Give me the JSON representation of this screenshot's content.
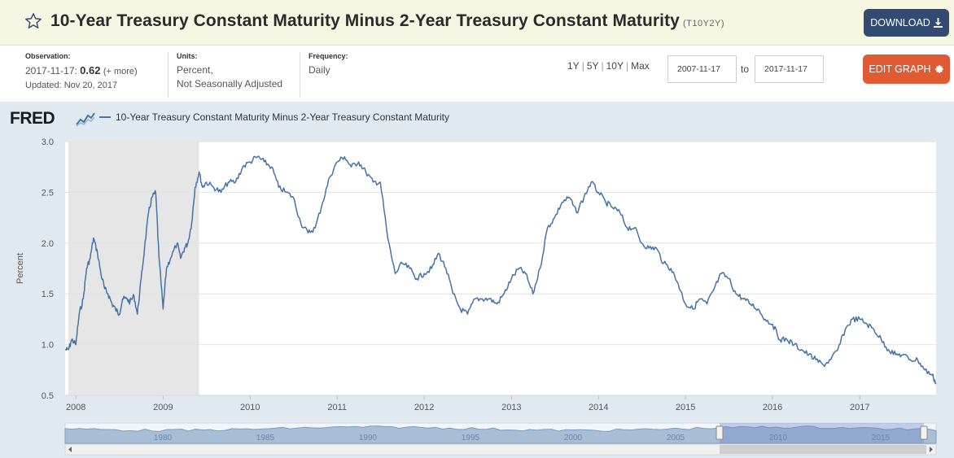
{
  "header": {
    "title": "10-Year Treasury Constant Maturity Minus 2-Year Treasury Constant Maturity",
    "series_id": "(T10Y2Y)",
    "download_label": "DOWNLOAD",
    "download_icon": "download-icon",
    "favorite_icon": "star-icon"
  },
  "meta": {
    "observation_label": "Observation:",
    "observation_date": "2017-11-17:",
    "observation_value": "0.62",
    "more_link": "(+ more)",
    "updated": "Updated: Nov 20, 2017",
    "units_label": "Units:",
    "units_line1": "Percent,",
    "units_line2": "Not Seasonally Adjusted",
    "frequency_label": "Frequency:",
    "frequency_value": "Daily"
  },
  "range": {
    "options": [
      "1Y",
      "5Y",
      "10Y",
      "Max"
    ],
    "from": "2007-11-17",
    "to_label": "to",
    "to": "2017-11-17"
  },
  "edit_graph_label": "EDIT GRAPH",
  "logo_text": "FRED",
  "colors": {
    "series": "#4572a7",
    "recession": "#e6e6e6",
    "header_bg": "#f7f6e2",
    "download_bg": "#334b73",
    "edit_bg": "#e05a34",
    "graph_bg": "#e1e9f0"
  },
  "chart_data": {
    "type": "line",
    "title": "",
    "xlabel": "",
    "ylabel": "Percent",
    "ylim": [
      0.5,
      3.0
    ],
    "xlim": [
      "2007-11-17",
      "2017-11-17"
    ],
    "y_ticks": [
      "0.5",
      "1.0",
      "1.5",
      "2.0",
      "2.5",
      "3.0"
    ],
    "x_ticks": [
      "2008",
      "2009",
      "2010",
      "2011",
      "2012",
      "2013",
      "2014",
      "2015",
      "2016",
      "2017"
    ],
    "grid": true,
    "legend": "top-left",
    "recession": {
      "start": "2007-12-01",
      "end": "2009-06-01"
    },
    "series": [
      {
        "name": "10-Year Treasury Constant Maturity Minus 2-Year Treasury Constant Maturity",
        "points": [
          [
            "2007-11-17",
            0.95
          ],
          [
            "2007-12-01",
            0.95
          ],
          [
            "2007-12-15",
            1.05
          ],
          [
            "2008-01-01",
            1.0
          ],
          [
            "2008-01-15",
            1.3
          ],
          [
            "2008-02-01",
            1.45
          ],
          [
            "2008-02-15",
            1.75
          ],
          [
            "2008-03-01",
            1.85
          ],
          [
            "2008-03-15",
            2.05
          ],
          [
            "2008-04-01",
            1.9
          ],
          [
            "2008-04-15",
            1.7
          ],
          [
            "2008-05-01",
            1.55
          ],
          [
            "2008-05-15",
            1.5
          ],
          [
            "2008-06-01",
            1.4
          ],
          [
            "2008-06-15",
            1.35
          ],
          [
            "2008-07-01",
            1.3
          ],
          [
            "2008-07-15",
            1.45
          ],
          [
            "2008-08-01",
            1.45
          ],
          [
            "2008-08-15",
            1.42
          ],
          [
            "2008-09-01",
            1.48
          ],
          [
            "2008-09-15",
            1.3
          ],
          [
            "2008-10-01",
            1.65
          ],
          [
            "2008-10-15",
            1.95
          ],
          [
            "2008-11-01",
            2.3
          ],
          [
            "2008-11-15",
            2.45
          ],
          [
            "2008-12-01",
            2.5
          ],
          [
            "2008-12-15",
            1.85
          ],
          [
            "2009-01-01",
            1.35
          ],
          [
            "2009-01-15",
            1.75
          ],
          [
            "2009-02-01",
            1.85
          ],
          [
            "2009-03-01",
            2.0
          ],
          [
            "2009-03-15",
            1.85
          ],
          [
            "2009-04-01",
            1.95
          ],
          [
            "2009-04-15",
            2.0
          ],
          [
            "2009-05-01",
            2.2
          ],
          [
            "2009-05-15",
            2.55
          ],
          [
            "2009-06-01",
            2.7
          ],
          [
            "2009-06-15",
            2.55
          ],
          [
            "2009-07-01",
            2.6
          ],
          [
            "2009-08-01",
            2.55
          ],
          [
            "2009-09-01",
            2.5
          ],
          [
            "2009-10-01",
            2.6
          ],
          [
            "2009-11-01",
            2.6
          ],
          [
            "2009-12-01",
            2.75
          ],
          [
            "2010-01-01",
            2.8
          ],
          [
            "2010-02-01",
            2.85
          ],
          [
            "2010-03-01",
            2.8
          ],
          [
            "2010-04-01",
            2.75
          ],
          [
            "2010-05-01",
            2.55
          ],
          [
            "2010-06-01",
            2.5
          ],
          [
            "2010-07-01",
            2.45
          ],
          [
            "2010-08-01",
            2.2
          ],
          [
            "2010-09-01",
            2.1
          ],
          [
            "2010-10-01",
            2.15
          ],
          [
            "2010-11-01",
            2.4
          ],
          [
            "2010-12-01",
            2.65
          ],
          [
            "2011-01-01",
            2.8
          ],
          [
            "2011-02-01",
            2.85
          ],
          [
            "2011-03-01",
            2.75
          ],
          [
            "2011-04-01",
            2.8
          ],
          [
            "2011-05-01",
            2.7
          ],
          [
            "2011-06-01",
            2.6
          ],
          [
            "2011-07-01",
            2.6
          ],
          [
            "2011-08-01",
            2.05
          ],
          [
            "2011-09-01",
            1.7
          ],
          [
            "2011-10-01",
            1.8
          ],
          [
            "2011-11-01",
            1.75
          ],
          [
            "2011-12-01",
            1.65
          ],
          [
            "2012-01-01",
            1.7
          ],
          [
            "2012-02-01",
            1.75
          ],
          [
            "2012-03-01",
            1.9
          ],
          [
            "2012-04-01",
            1.75
          ],
          [
            "2012-05-01",
            1.5
          ],
          [
            "2012-06-01",
            1.35
          ],
          [
            "2012-07-01",
            1.3
          ],
          [
            "2012-08-01",
            1.45
          ],
          [
            "2012-09-01",
            1.45
          ],
          [
            "2012-10-01",
            1.45
          ],
          [
            "2012-11-01",
            1.4
          ],
          [
            "2012-12-01",
            1.5
          ],
          [
            "2013-01-01",
            1.65
          ],
          [
            "2013-02-01",
            1.75
          ],
          [
            "2013-03-01",
            1.7
          ],
          [
            "2013-04-01",
            1.5
          ],
          [
            "2013-05-01",
            1.75
          ],
          [
            "2013-06-01",
            2.15
          ],
          [
            "2013-07-01",
            2.25
          ],
          [
            "2013-08-01",
            2.4
          ],
          [
            "2013-09-01",
            2.45
          ],
          [
            "2013-10-01",
            2.3
          ],
          [
            "2013-11-01",
            2.45
          ],
          [
            "2013-12-01",
            2.6
          ],
          [
            "2014-01-01",
            2.5
          ],
          [
            "2014-02-01",
            2.4
          ],
          [
            "2014-03-01",
            2.35
          ],
          [
            "2014-04-01",
            2.3
          ],
          [
            "2014-05-01",
            2.15
          ],
          [
            "2014-06-01",
            2.15
          ],
          [
            "2014-07-01",
            2.0
          ],
          [
            "2014-08-01",
            1.95
          ],
          [
            "2014-09-01",
            1.95
          ],
          [
            "2014-10-01",
            1.8
          ],
          [
            "2014-11-01",
            1.75
          ],
          [
            "2014-12-01",
            1.6
          ],
          [
            "2015-01-01",
            1.4
          ],
          [
            "2015-02-01",
            1.35
          ],
          [
            "2015-03-01",
            1.45
          ],
          [
            "2015-04-01",
            1.4
          ],
          [
            "2015-05-01",
            1.55
          ],
          [
            "2015-06-01",
            1.7
          ],
          [
            "2015-07-01",
            1.65
          ],
          [
            "2015-08-01",
            1.5
          ],
          [
            "2015-09-01",
            1.45
          ],
          [
            "2015-10-01",
            1.4
          ],
          [
            "2015-11-01",
            1.35
          ],
          [
            "2015-12-01",
            1.25
          ],
          [
            "2016-01-01",
            1.2
          ],
          [
            "2016-02-01",
            1.05
          ],
          [
            "2016-03-01",
            1.05
          ],
          [
            "2016-04-01",
            1.0
          ],
          [
            "2016-05-01",
            0.95
          ],
          [
            "2016-06-01",
            0.9
          ],
          [
            "2016-07-01",
            0.85
          ],
          [
            "2016-08-01",
            0.8
          ],
          [
            "2016-09-01",
            0.85
          ],
          [
            "2016-10-01",
            0.95
          ],
          [
            "2016-11-01",
            1.15
          ],
          [
            "2016-12-01",
            1.25
          ],
          [
            "2017-01-01",
            1.25
          ],
          [
            "2017-02-01",
            1.2
          ],
          [
            "2017-03-01",
            1.15
          ],
          [
            "2017-04-01",
            1.05
          ],
          [
            "2017-05-01",
            0.95
          ],
          [
            "2017-06-01",
            0.9
          ],
          [
            "2017-07-01",
            0.9
          ],
          [
            "2017-08-01",
            0.85
          ],
          [
            "2017-09-01",
            0.85
          ],
          [
            "2017-10-01",
            0.75
          ],
          [
            "2017-11-01",
            0.7
          ],
          [
            "2017-11-17",
            0.62
          ]
        ]
      }
    ],
    "navigator": {
      "labels": [
        "1980",
        "1985",
        "1990",
        "1995",
        "2000",
        "2005",
        "2010",
        "2015"
      ]
    }
  }
}
